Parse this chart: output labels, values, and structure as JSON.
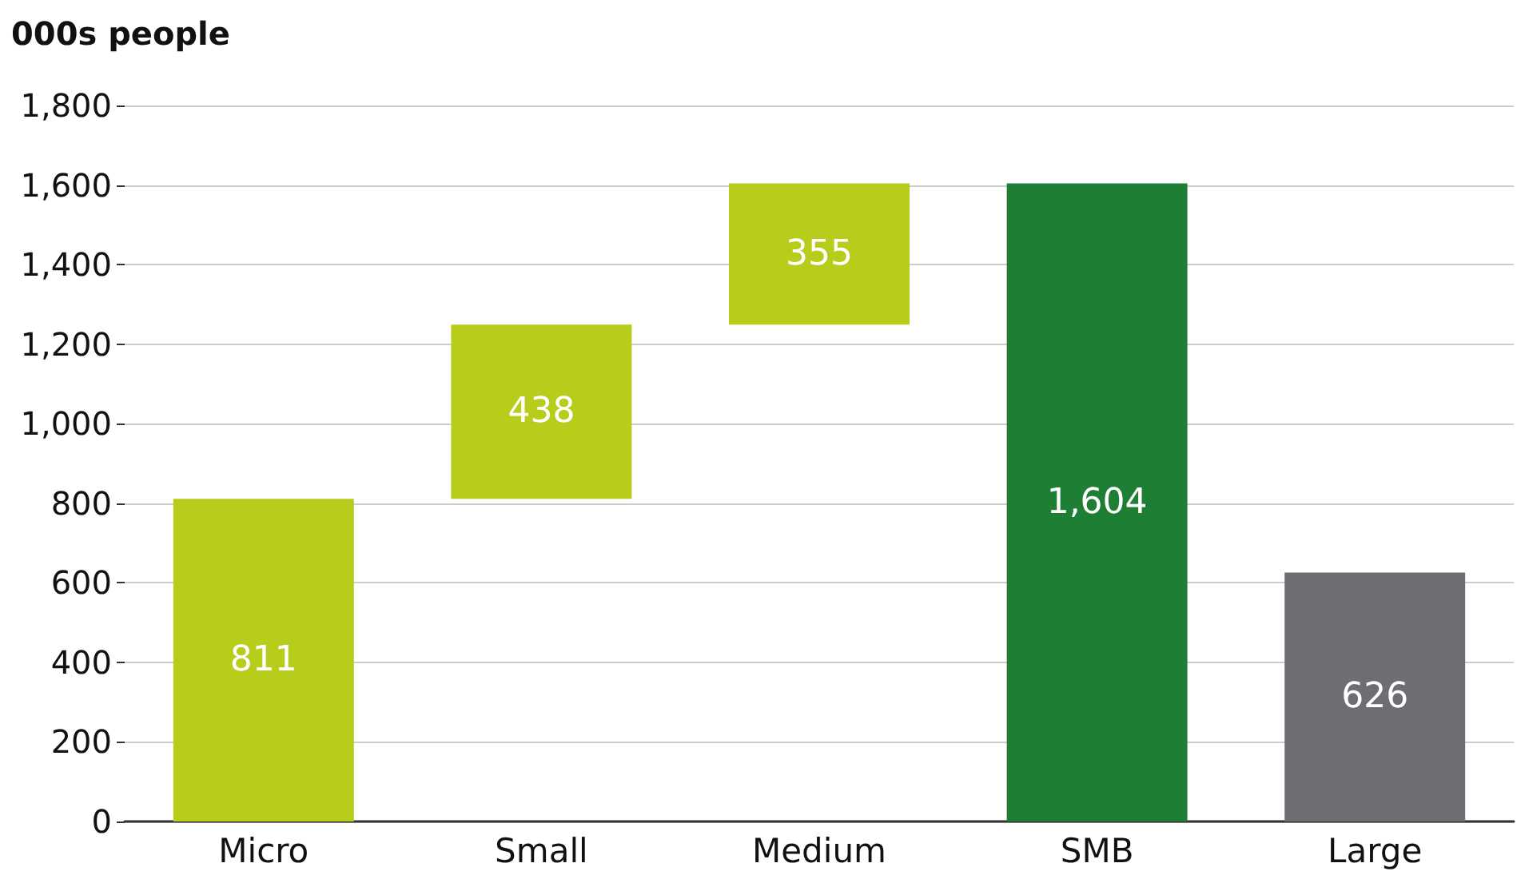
{
  "chart_data": {
    "type": "bar",
    "ylabel": "000s people",
    "categories": [
      "Micro",
      "Small",
      "Medium",
      "SMB",
      "Large"
    ],
    "values": [
      811,
      438,
      355,
      1604,
      626
    ],
    "base": [
      0,
      811,
      1249,
      0,
      0
    ],
    "colors": [
      "#b8cc1c",
      "#b8cc1c",
      "#b8cc1c",
      "#1e7e34",
      "#6e6d72"
    ],
    "value_labels": [
      "811",
      "438",
      "355",
      "1,604",
      "626"
    ],
    "ylim": [
      0,
      1800
    ],
    "yticks": [
      0,
      200,
      400,
      600,
      800,
      {
        "value": 1000,
        "label": "1,000"
      },
      {
        "value": 1200,
        "label": "1,200"
      },
      {
        "value": 1400,
        "label": "1,400"
      },
      {
        "value": 1600,
        "label": "1,600"
      },
      {
        "value": 1800,
        "label": "1,800"
      }
    ],
    "grid": "y"
  }
}
